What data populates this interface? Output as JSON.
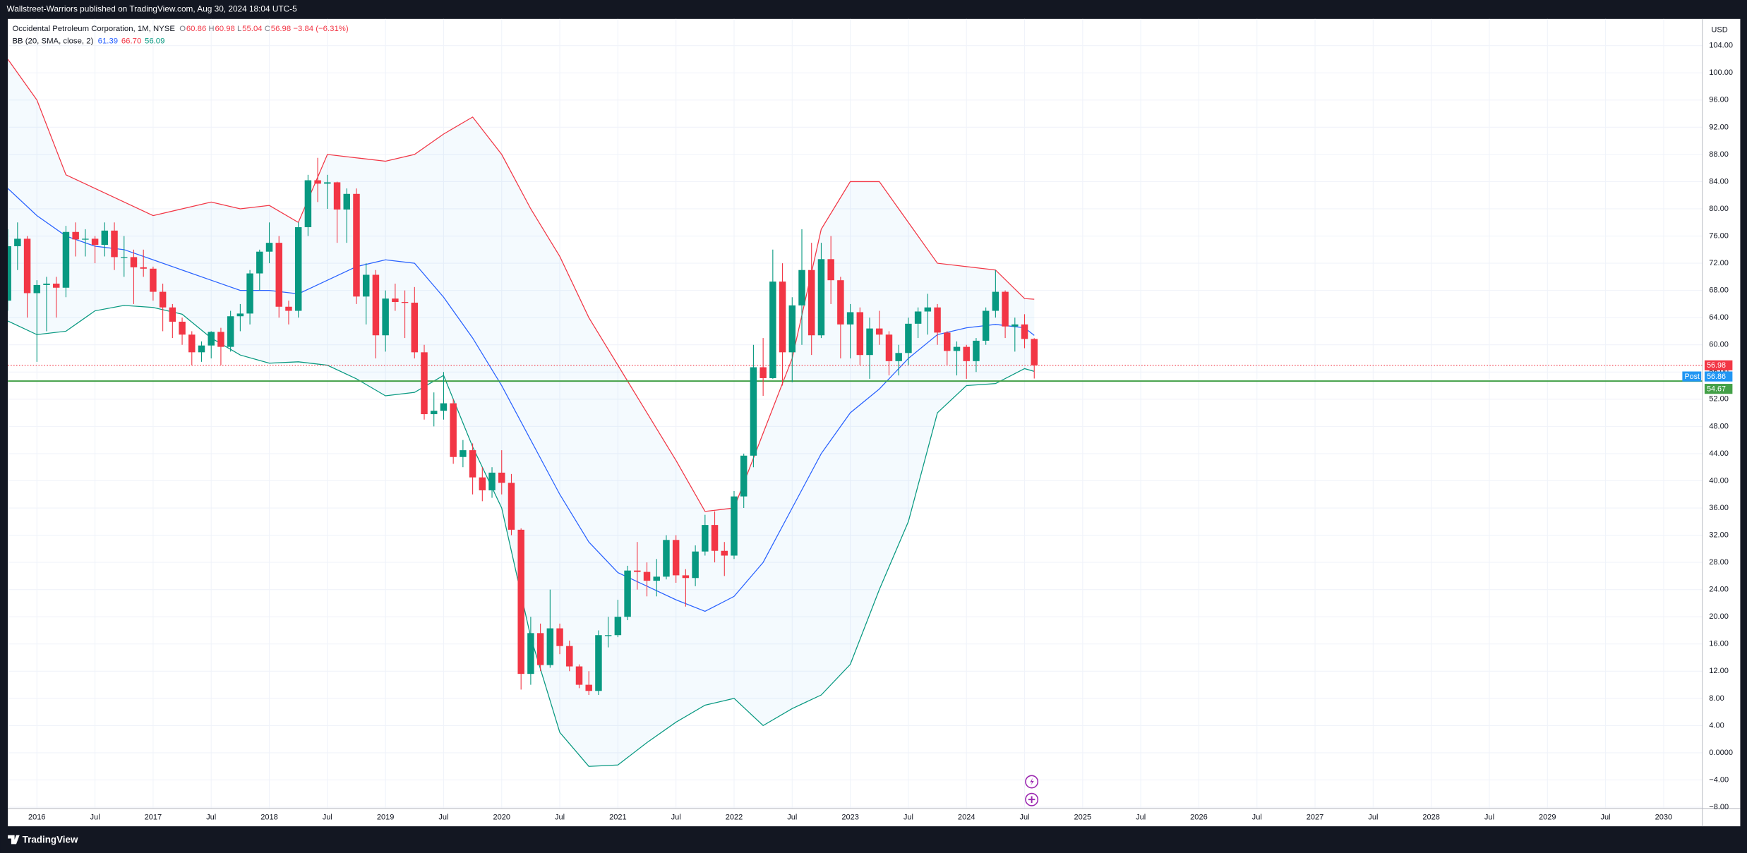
{
  "header": "Wallstreet-Warriors published on TradingView.com, Aug 30, 2024 18:04 UTC-5",
  "footer": "TradingView",
  "chart_data": {
    "type": "candlestick",
    "legend": {
      "name": "Occidental Petroleum Corporation, 1M, NYSE",
      "ohlc": [
        {
          "key": "O",
          "value": "60.86"
        },
        {
          "key": "H",
          "value": "60.98"
        },
        {
          "key": "L",
          "value": "55.04"
        },
        {
          "key": "C",
          "value": "56.98"
        }
      ],
      "change": "−3.84 (−6.31%)",
      "color": "#f23645"
    },
    "indicator": {
      "name": "BB (20, SMA, close, 2)",
      "values": [
        {
          "text": "61.39",
          "color": "#2962ff"
        },
        {
          "text": "66.70",
          "color": "#f23645"
        },
        {
          "text": "56.09",
          "color": "#089981"
        }
      ]
    },
    "currency": "USD",
    "up_color": "#089981",
    "down_color": "#f23645",
    "x": [
      "2015-10",
      "2015-11",
      "2015-12",
      "2016-01",
      "2016-02",
      "2016-03",
      "2016-04",
      "2016-05",
      "2016-06",
      "2016-07",
      "2016-08",
      "2016-09",
      "2016-10",
      "2016-11",
      "2016-12",
      "2017-01",
      "2017-02",
      "2017-03",
      "2017-04",
      "2017-05",
      "2017-06",
      "2017-07",
      "2017-08",
      "2017-09",
      "2017-10",
      "2017-11",
      "2017-12",
      "2018-01",
      "2018-02",
      "2018-03",
      "2018-04",
      "2018-05",
      "2018-06",
      "2018-07",
      "2018-08",
      "2018-09",
      "2018-10",
      "2018-11",
      "2018-12",
      "2019-01",
      "2019-02",
      "2019-03",
      "2019-04",
      "2019-05",
      "2019-06",
      "2019-07",
      "2019-08",
      "2019-09",
      "2019-10",
      "2019-11",
      "2019-12",
      "2020-01",
      "2020-02",
      "2020-03",
      "2020-04",
      "2020-05",
      "2020-06",
      "2020-07",
      "2020-08",
      "2020-09",
      "2020-10",
      "2020-11",
      "2020-12",
      "2021-01",
      "2021-02",
      "2021-03",
      "2021-04",
      "2021-05",
      "2021-06",
      "2021-07",
      "2021-08",
      "2021-09",
      "2021-10",
      "2021-11",
      "2021-12",
      "2022-01",
      "2022-02",
      "2022-03",
      "2022-04",
      "2022-05",
      "2022-06",
      "2022-07",
      "2022-08",
      "2022-09",
      "2022-10",
      "2022-11",
      "2022-12",
      "2023-01",
      "2023-02",
      "2023-03",
      "2023-04",
      "2023-05",
      "2023-06",
      "2023-07",
      "2023-08",
      "2023-09",
      "2023-10",
      "2023-11",
      "2023-12",
      "2024-01",
      "2024-02",
      "2024-03",
      "2024-04",
      "2024-05",
      "2024-06",
      "2024-07",
      "2024-08"
    ],
    "open": [
      66.5,
      74.5,
      75.6,
      67.6,
      68.8,
      69,
      68.4,
      76.6,
      75.5,
      75.6,
      74.7,
      76.8,
      72.9,
      72.9,
      71.4,
      71.2,
      67.8,
      65.5,
      63.4,
      61.5,
      58.9,
      59.9,
      61.9,
      59.7,
      64.2,
      64.6,
      70.5,
      73.7,
      75,
      65.6,
      65,
      77.3,
      84.2,
      83.7,
      83.9,
      79.9,
      82.2,
      67.1,
      70.3,
      61.4,
      66.8,
      66.3,
      66.2,
      58.9,
      49.8,
      50.3,
      51.4,
      43.5,
      44.5,
      40.5,
      38.6,
      41.2,
      39.7,
      32.8,
      11.6,
      17.6,
      12.9,
      18.3,
      15.7,
      12.7,
      10,
      9.1,
      17.3,
      17.3,
      20,
      26.8,
      26.6,
      25.3,
      25.9,
      31.3,
      26.1,
      25.7,
      29.6,
      33.5,
      29.7,
      29,
      37.7,
      43.7,
      56.7,
      55.1,
      69.3,
      58.9,
      65.8,
      71,
      61.4,
      72.6,
      69.5,
      63,
      64.8,
      58.5,
      62.4,
      61.5,
      57.6,
      58.8,
      63.1,
      64.9,
      65.5,
      61.8,
      59.1,
      59.7,
      57.6,
      60.6,
      65,
      67.8,
      62.7,
      63,
      60.86
    ],
    "high": [
      77,
      78,
      76,
      69.5,
      70,
      70,
      77.5,
      78,
      77,
      76,
      78,
      78,
      76,
      74,
      74,
      71.5,
      69,
      66,
      64,
      62,
      60.5,
      62,
      62.5,
      65,
      66,
      71,
      74,
      78,
      76,
      66.5,
      78,
      85,
      87.5,
      85,
      84,
      83,
      83,
      72,
      71,
      68,
      69,
      68,
      68.5,
      60,
      53,
      56,
      52,
      46,
      45.5,
      42,
      42,
      44.5,
      41,
      33,
      20,
      19,
      24,
      19,
      16.5,
      13,
      12,
      18,
      20,
      22.5,
      27.5,
      31,
      28,
      28.5,
      32,
      32,
      27,
      30.5,
      35,
      35.5,
      31,
      38.5,
      44,
      60,
      61,
      74,
      72,
      67,
      77,
      75,
      75,
      76,
      70,
      66,
      65.5,
      64,
      65,
      62,
      60,
      64,
      65.5,
      67.5,
      66,
      62,
      60.5,
      60,
      61,
      65.5,
      71,
      68,
      64,
      64.5,
      60.98
    ],
    "low": [
      65,
      71,
      64,
      57.5,
      62,
      64,
      67,
      73,
      73,
      72,
      73,
      71,
      70,
      66,
      70,
      66.5,
      62,
      61,
      60,
      57,
      57.5,
      58,
      57,
      59,
      62,
      63,
      68,
      72,
      64,
      63,
      64,
      76,
      81,
      80,
      75,
      75,
      66,
      63,
      58,
      59,
      65,
      61,
      58,
      49,
      48,
      49,
      42.5,
      42,
      38,
      37,
      37.5,
      38,
      32,
      9.3,
      10,
      12,
      12.5,
      14.5,
      12,
      9.5,
      8.5,
      8.5,
      15.5,
      17,
      19.5,
      24,
      23,
      23,
      25.5,
      25,
      21.5,
      24.5,
      29,
      28,
      26,
      28.5,
      36,
      42,
      52.5,
      55,
      54,
      54.5,
      60,
      58.5,
      61,
      66,
      58,
      58,
      57,
      55,
      60,
      55.5,
      55.5,
      57,
      61,
      61.5,
      60,
      57,
      55.5,
      55,
      56,
      60,
      64,
      61,
      59,
      59.5,
      55.04
    ],
    "close": [
      74.5,
      75.6,
      67.6,
      68.8,
      69,
      68.4,
      76.6,
      75.5,
      75.6,
      74.7,
      76.8,
      72.9,
      72.9,
      71.4,
      71.2,
      67.8,
      65.5,
      63.4,
      61.5,
      58.9,
      59.9,
      61.9,
      59.7,
      64.2,
      64.6,
      70.5,
      73.7,
      75,
      65.6,
      65,
      77.3,
      84.2,
      83.7,
      83.9,
      79.9,
      82.2,
      67.1,
      70.3,
      61.4,
      66.8,
      66.3,
      66.2,
      58.9,
      49.8,
      50.3,
      51.4,
      43.5,
      44.5,
      40.5,
      38.6,
      41.2,
      39.7,
      32.8,
      11.6,
      17.6,
      12.9,
      18.3,
      15.7,
      12.7,
      10,
      9.1,
      17.3,
      17.3,
      20,
      26.8,
      26.6,
      25.3,
      25.9,
      31.3,
      26.1,
      25.7,
      29.6,
      33.5,
      29.7,
      29,
      37.7,
      43.7,
      56.7,
      55.1,
      69.3,
      58.9,
      65.8,
      71,
      61.4,
      72.6,
      69.5,
      63,
      64.8,
      58.5,
      62.4,
      61.5,
      57.6,
      58.8,
      63.1,
      64.9,
      65.5,
      61.8,
      59.1,
      59.7,
      57.6,
      60.6,
      65,
      67.8,
      62.7,
      63,
      60.86,
      56.98
    ],
    "bands": {
      "x": [
        "2015-10",
        "2016-01",
        "2016-04",
        "2016-07",
        "2016-10",
        "2017-01",
        "2017-04",
        "2017-07",
        "2017-10",
        "2018-01",
        "2018-04",
        "2018-07",
        "2018-10",
        "2019-01",
        "2019-04",
        "2019-07",
        "2019-10",
        "2020-01",
        "2020-04",
        "2020-07",
        "2020-10",
        "2021-01",
        "2021-04",
        "2021-07",
        "2021-10",
        "2022-01",
        "2022-04",
        "2022-07",
        "2022-10",
        "2023-01",
        "2023-04",
        "2023-07",
        "2023-10",
        "2024-01",
        "2024-04",
        "2024-07",
        "2024-08"
      ],
      "fill": "rgba(33,150,243,0.05)",
      "upper": {
        "color": "#f23645",
        "values": [
          102,
          96,
          85,
          83,
          81,
          79,
          80,
          81,
          80,
          80.5,
          78,
          88,
          87.5,
          87,
          88,
          91,
          93.5,
          88,
          80,
          73,
          64,
          57,
          50,
          43,
          35.5,
          36,
          47,
          58,
          77,
          84,
          84,
          78,
          72,
          71.5,
          71,
          66.8,
          66.7
        ]
      },
      "basis": {
        "color": "#2962ff",
        "values": [
          83,
          79,
          76,
          74.5,
          74,
          72.5,
          71,
          69.5,
          68,
          68,
          67.5,
          69.5,
          71.5,
          72.5,
          72,
          67,
          61,
          54,
          46,
          38,
          31,
          26.5,
          24.5,
          22.5,
          20.8,
          23,
          28,
          36,
          44,
          50,
          53.5,
          58,
          61.5,
          62.5,
          63,
          62.5,
          61.39
        ]
      },
      "lower": {
        "color": "#089981",
        "values": [
          63.5,
          61.5,
          62,
          65,
          65.8,
          65.5,
          64.5,
          61,
          58.5,
          57.3,
          57.5,
          57,
          55,
          52.5,
          53,
          55.5,
          45,
          36,
          17,
          3,
          -2,
          -1.8,
          1.5,
          4.5,
          7,
          8,
          4,
          6.5,
          8.5,
          13,
          24,
          34,
          50,
          54,
          54.3,
          56.5,
          56.09
        ]
      }
    },
    "price_line": {
      "value": 56.98,
      "label": "56.98",
      "color": "#f23645"
    },
    "post": {
      "name": "Post",
      "value": 56.86,
      "label": "56.86",
      "color": "#2196f3"
    },
    "hlines": [
      {
        "value": 54.67,
        "label": "54.67",
        "color": "#43a047"
      }
    ],
    "xlim": [
      "2015-10",
      "2030-05"
    ],
    "xticks": [
      {
        "value": "2016-01",
        "label": "2016"
      },
      {
        "value": "2016-07",
        "label": "Jul"
      },
      {
        "value": "2017-01",
        "label": "2017"
      },
      {
        "value": "2017-07",
        "label": "Jul"
      },
      {
        "value": "2018-01",
        "label": "2018"
      },
      {
        "value": "2018-07",
        "label": "Jul"
      },
      {
        "value": "2019-01",
        "label": "2019"
      },
      {
        "value": "2019-07",
        "label": "Jul"
      },
      {
        "value": "2020-01",
        "label": "2020"
      },
      {
        "value": "2020-07",
        "label": "Jul"
      },
      {
        "value": "2021-01",
        "label": "2021"
      },
      {
        "value": "2021-07",
        "label": "Jul"
      },
      {
        "value": "2022-01",
        "label": "2022"
      },
      {
        "value": "2022-07",
        "label": "Jul"
      },
      {
        "value": "2023-01",
        "label": "2023"
      },
      {
        "value": "2023-07",
        "label": "Jul"
      },
      {
        "value": "2024-01",
        "label": "2024"
      },
      {
        "value": "2024-07",
        "label": "Jul"
      },
      {
        "value": "2025-01",
        "label": "2025"
      },
      {
        "value": "2025-07",
        "label": "Jul"
      },
      {
        "value": "2026-01",
        "label": "2026"
      },
      {
        "value": "2026-07",
        "label": "Jul"
      },
      {
        "value": "2027-01",
        "label": "2027"
      },
      {
        "value": "2027-07",
        "label": "Jul"
      },
      {
        "value": "2028-01",
        "label": "2028"
      },
      {
        "value": "2028-07",
        "label": "Jul"
      },
      {
        "value": "2029-01",
        "label": "2029"
      },
      {
        "value": "2029-07",
        "label": "Jul"
      },
      {
        "value": "2030-01",
        "label": "2030"
      }
    ],
    "ylim": [
      -8.19,
      107.93
    ],
    "yticks": [
      {
        "value": 104,
        "label": "104.00"
      },
      {
        "value": 100,
        "label": "100.00"
      },
      {
        "value": 96,
        "label": "96.00"
      },
      {
        "value": 92,
        "label": "92.00"
      },
      {
        "value": 88,
        "label": "88.00"
      },
      {
        "value": 84,
        "label": "84.00"
      },
      {
        "value": 80,
        "label": "80.00"
      },
      {
        "value": 76,
        "label": "76.00"
      },
      {
        "value": 72,
        "label": "72.00"
      },
      {
        "value": 68,
        "label": "68.00"
      },
      {
        "value": 64,
        "label": "64.00"
      },
      {
        "value": 60,
        "label": "60.00"
      },
      {
        "value": 56,
        "label": "56.00"
      },
      {
        "value": 52,
        "label": "52.00"
      },
      {
        "value": 48,
        "label": "48.00"
      },
      {
        "value": 44,
        "label": "44.00"
      },
      {
        "value": 40,
        "label": "40.00"
      },
      {
        "value": 36,
        "label": "36.00"
      },
      {
        "value": 32,
        "label": "32.00"
      },
      {
        "value": 28,
        "label": "28.00"
      },
      {
        "value": 24,
        "label": "24.00"
      },
      {
        "value": 20,
        "label": "20.00"
      },
      {
        "value": 16,
        "label": "16.00"
      },
      {
        "value": 12,
        "label": "12.00"
      },
      {
        "value": 8,
        "label": "8.00"
      },
      {
        "value": 4,
        "label": "4.00"
      },
      {
        "value": 0,
        "label": "0.0000"
      },
      {
        "value": -4,
        "label": "−4.00"
      },
      {
        "value": -8,
        "label": "−8.00"
      }
    ],
    "grid": true
  }
}
